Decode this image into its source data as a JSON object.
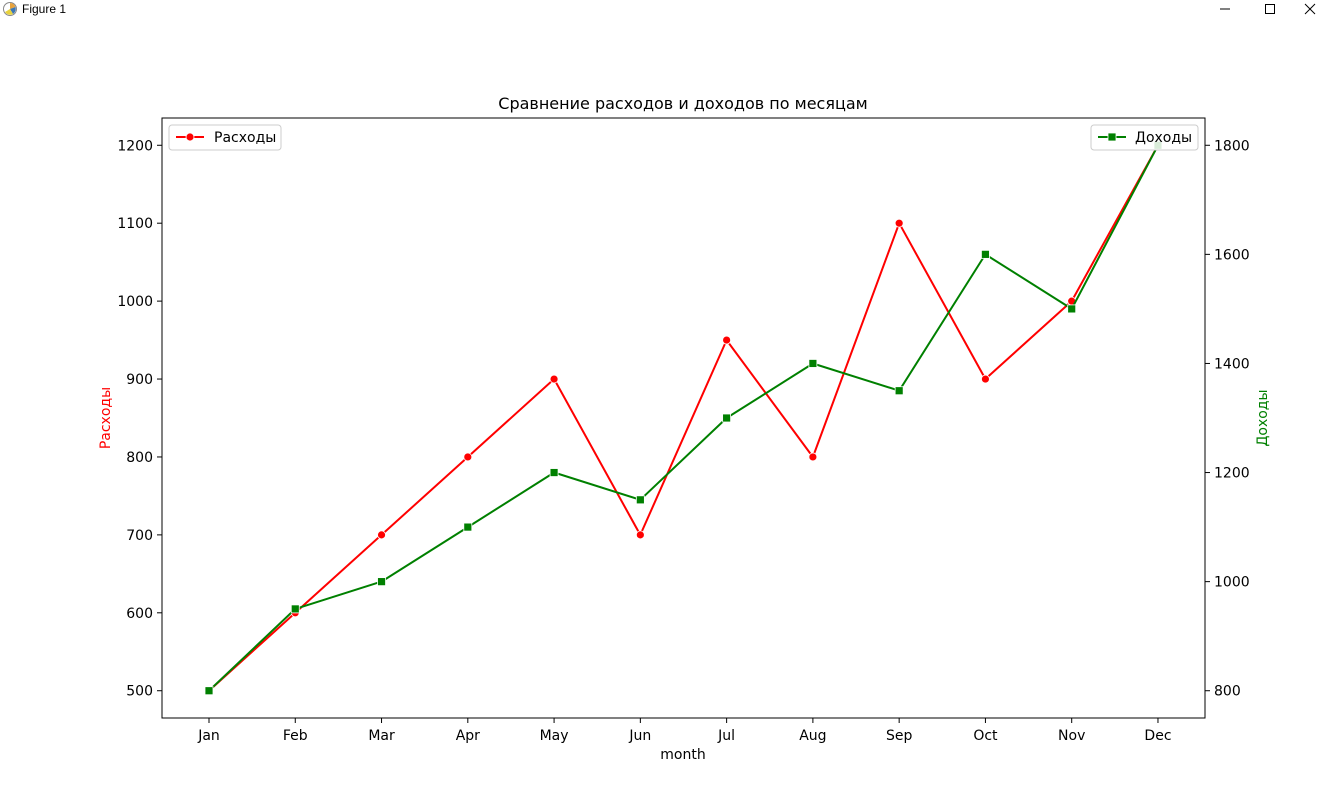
{
  "window": {
    "title": "Figure 1",
    "icon": "matplotlib-icon",
    "controls": [
      "minimize-icon",
      "maximize-icon",
      "close-icon"
    ]
  },
  "chart_data": {
    "type": "line",
    "title": "Сравнение расходов и доходов по месяцам",
    "xlabel": "month",
    "categories": [
      "Jan",
      "Feb",
      "Mar",
      "Apr",
      "May",
      "Jun",
      "Jul",
      "Aug",
      "Sep",
      "Oct",
      "Nov",
      "Dec"
    ],
    "left_axis": {
      "label": "Расходы",
      "color": "#ff0000",
      "ylim": [
        465,
        1235
      ],
      "ticks": [
        500,
        600,
        700,
        800,
        900,
        1000,
        1100,
        1200
      ]
    },
    "right_axis": {
      "label": "Доходы",
      "color": "#008000",
      "ylim": [
        750,
        1850
      ],
      "ticks": [
        800,
        1000,
        1200,
        1400,
        1600,
        1800
      ]
    },
    "series": [
      {
        "name": "Расходы",
        "axis": "left",
        "color": "#ff0000",
        "marker": "circle",
        "values": [
          500,
          600,
          700,
          800,
          900,
          700,
          950,
          800,
          1100,
          900,
          1000,
          1200
        ]
      },
      {
        "name": "Доходы",
        "axis": "right",
        "color": "#008000",
        "marker": "square",
        "values": [
          800,
          950,
          1000,
          1100,
          1200,
          1150,
          1300,
          1400,
          1350,
          1600,
          1500,
          1800
        ]
      }
    ],
    "legends": [
      {
        "series": "Расходы",
        "placement": "upper-left"
      },
      {
        "series": "Доходы",
        "placement": "upper-right"
      }
    ],
    "grid": false
  }
}
